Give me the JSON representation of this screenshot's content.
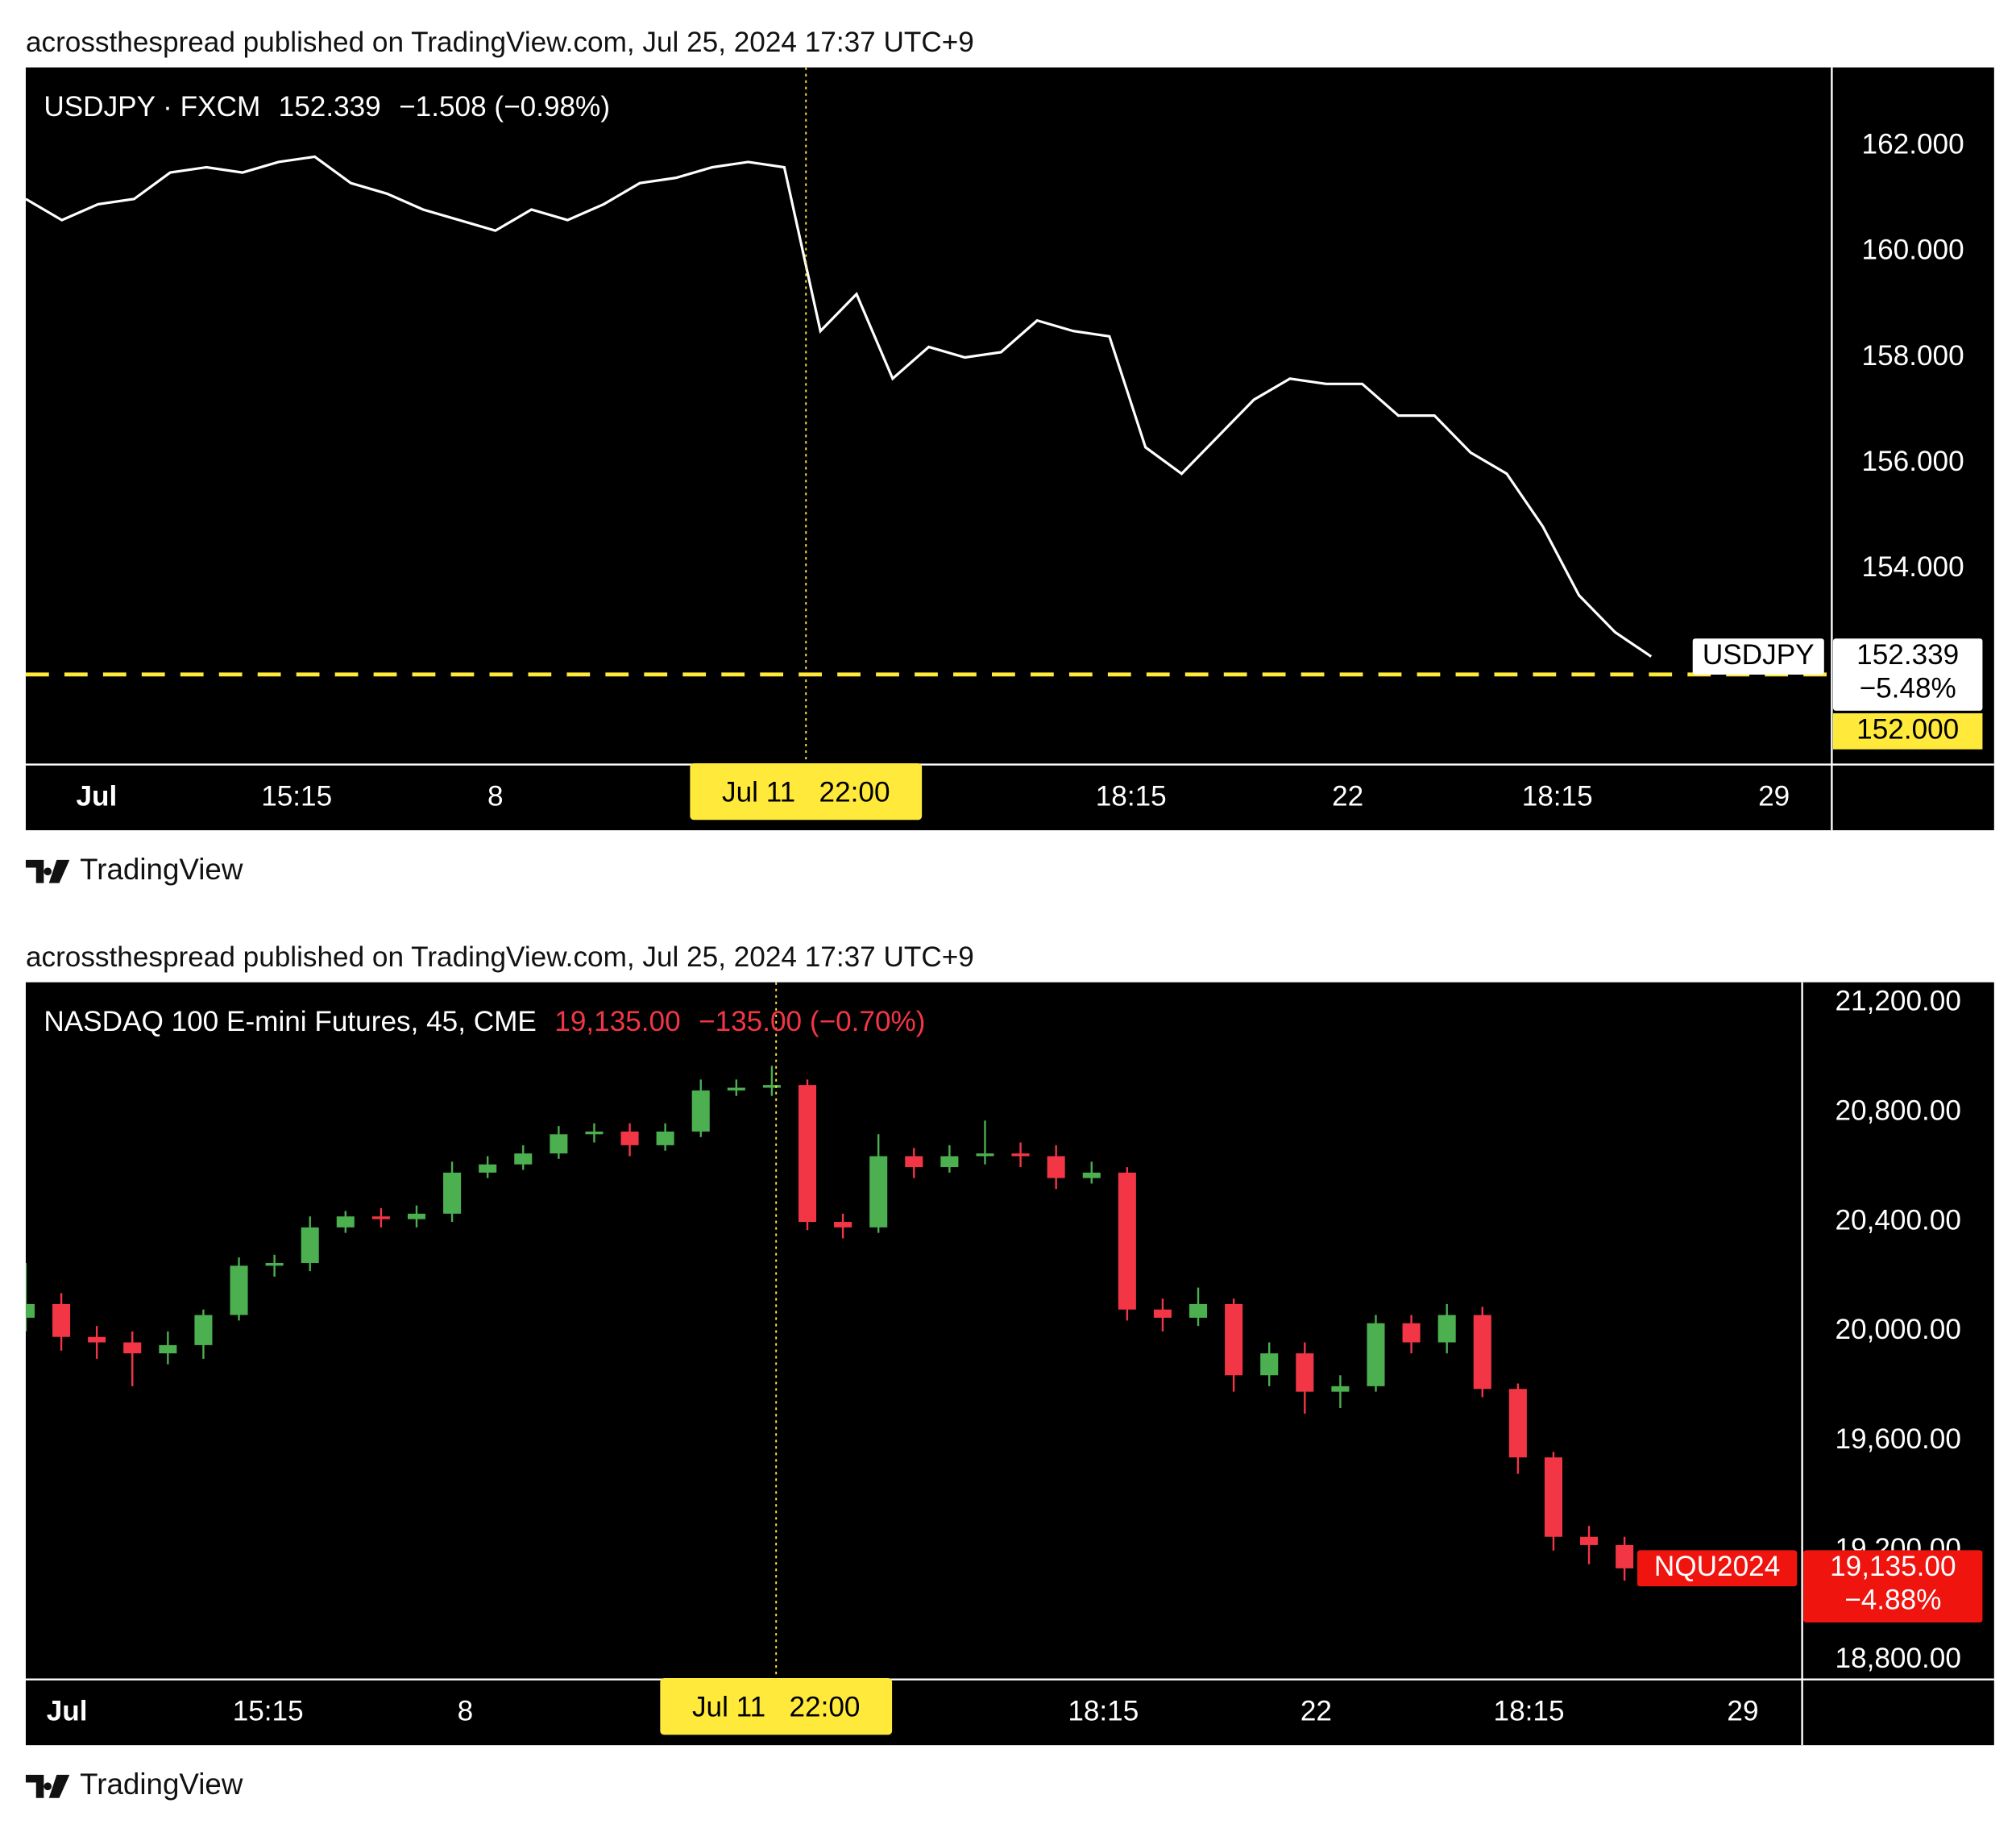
{
  "chart_data": [
    {
      "type": "line",
      "published": "acrossthespread published on TradingView.com, Jul 25, 2024 17:37 UTC+9",
      "symbol": "USDJPY · FXCM",
      "change": "−1.508 (−0.98%)",
      "tag_name": "USDJPY",
      "color": "#ffffff",
      "values": [
        161.0,
        160.6,
        160.9,
        161.0,
        161.5,
        161.6,
        161.5,
        161.7,
        161.8,
        161.3,
        161.1,
        160.8,
        160.6,
        160.4,
        160.8,
        160.6,
        160.9,
        161.3,
        161.4,
        161.6,
        161.7,
        161.6,
        158.5,
        159.2,
        157.6,
        158.2,
        158.0,
        158.1,
        158.7,
        158.5,
        158.4,
        156.3,
        155.8,
        156.5,
        157.2,
        157.6,
        157.5,
        157.5,
        156.9,
        156.9,
        156.2,
        155.8,
        154.8,
        153.5,
        152.8,
        152.339
      ],
      "change_pct": {
        "value": -5.48,
        "label": "−5.48%"
      },
      "price_line": {
        "value": 152,
        "label": "152.000",
        "color": "#ffe93b"
      },
      "xlim": [
        0,
        50
      ],
      "xticks": [
        {
          "value": 1.96,
          "label": "Jul"
        },
        {
          "value": 7.5,
          "label": "15:15"
        },
        {
          "value": 13,
          "label": "8"
        },
        {
          "value": 30.6,
          "label": "18:15"
        },
        {
          "value": 36.6,
          "label": "22"
        },
        {
          "value": 42.4,
          "label": "18:15"
        },
        {
          "value": 48.4,
          "label": "29"
        }
      ],
      "crosshair": {
        "x": 21.6,
        "label": "Jul 11   22:00"
      },
      "ylim": [
        150.32,
        163.49
      ],
      "yticks": [
        {
          "value": 154,
          "label": "154.000"
        },
        {
          "value": 156,
          "label": "156.000"
        },
        {
          "value": 158,
          "label": "158.000"
        },
        {
          "value": 160,
          "label": "160.000"
        },
        {
          "value": 162,
          "label": "162.000"
        }
      ],
      "grid": false,
      "footer": "TradingView"
    },
    {
      "type": "candlestick",
      "published": "acrossthespread published on TradingView.com, Jul 25, 2024 17:37 UTC+9",
      "symbol": "NASDAQ 100 E-mini Futures, 45, CME",
      "change": "−135.00 (−0.70%)",
      "tag_name": "NQU2024",
      "up_color": "#4caf50",
      "down_color": "#f23645",
      "open": [
        20050,
        20100,
        19980,
        19960,
        19920,
        19950,
        20060,
        20240,
        20250,
        20380,
        20420,
        20410,
        20430,
        20580,
        20610,
        20650,
        20720,
        20730,
        20680,
        20730,
        20880,
        20890,
        20900,
        20400,
        20380,
        20640,
        20600,
        20640,
        20650,
        20640,
        20560,
        20580,
        20080,
        20050,
        20100,
        19840,
        19920,
        19780,
        19800,
        20030,
        19960,
        20060,
        19790,
        19540,
        19250,
        19220
      ],
      "high": [
        20250,
        20140,
        20020,
        20000,
        20000,
        20080,
        20270,
        20280,
        20420,
        20440,
        20450,
        20460,
        20620,
        20640,
        20680,
        20750,
        20760,
        20760,
        20760,
        20920,
        20920,
        20970,
        20920,
        20430,
        20720,
        20670,
        20680,
        20770,
        20690,
        20680,
        20620,
        20600,
        20120,
        20160,
        20120,
        19960,
        19960,
        19840,
        20060,
        20060,
        20100,
        20090,
        19810,
        19560,
        19290,
        19250
      ],
      "low": [
        20000,
        19930,
        19900,
        19800,
        19880,
        19900,
        20040,
        20200,
        20220,
        20360,
        20380,
        20380,
        20400,
        20560,
        20590,
        20630,
        20690,
        20640,
        20660,
        20710,
        20860,
        20860,
        20370,
        20340,
        20360,
        20560,
        20580,
        20610,
        20600,
        20520,
        20540,
        20040,
        20000,
        20020,
        19780,
        19800,
        19700,
        19720,
        19780,
        19920,
        19920,
        19760,
        19480,
        19200,
        19150,
        19090
      ],
      "close": [
        20100,
        19980,
        19960,
        19920,
        19950,
        20060,
        20240,
        20250,
        20380,
        20420,
        20410,
        20430,
        20580,
        20610,
        20650,
        20720,
        20730,
        20680,
        20730,
        20880,
        20890,
        20900,
        20400,
        20380,
        20640,
        20600,
        20640,
        20650,
        20640,
        20560,
        20580,
        20080,
        20050,
        20100,
        19840,
        19920,
        19780,
        19800,
        20030,
        19960,
        20060,
        19790,
        19540,
        19250,
        19220,
        19135
      ],
      "last_price": {
        "value": 19135,
        "label": "19,135.00"
      },
      "change_pct": {
        "value": -4.88,
        "label": "−4.88%"
      },
      "xlim": [
        0,
        50
      ],
      "xticks": [
        {
          "value": 1.16,
          "label": "Jul"
        },
        {
          "value": 6.82,
          "label": "15:15"
        },
        {
          "value": 12.37,
          "label": "8"
        },
        {
          "value": 30.33,
          "label": "18:15"
        },
        {
          "value": 36.32,
          "label": "22"
        },
        {
          "value": 42.31,
          "label": "18:15"
        },
        {
          "value": 48.33,
          "label": "29"
        }
      ],
      "crosshair": {
        "x": 21.12,
        "label": "Jul 11   22:00"
      },
      "ylim": [
        18734,
        21275
      ],
      "yticks": [
        {
          "value": 18800,
          "label": "18,800.00"
        },
        {
          "value": 19200,
          "label": "19,200.00"
        },
        {
          "value": 19600,
          "label": "19,600.00"
        },
        {
          "value": 20000,
          "label": "20,000.00"
        },
        {
          "value": 20400,
          "label": "20,400.00"
        },
        {
          "value": 20800,
          "label": "20,800.00"
        },
        {
          "value": 21200,
          "label": "21,200.00"
        }
      ],
      "grid": false,
      "footer": "TradingView"
    }
  ]
}
